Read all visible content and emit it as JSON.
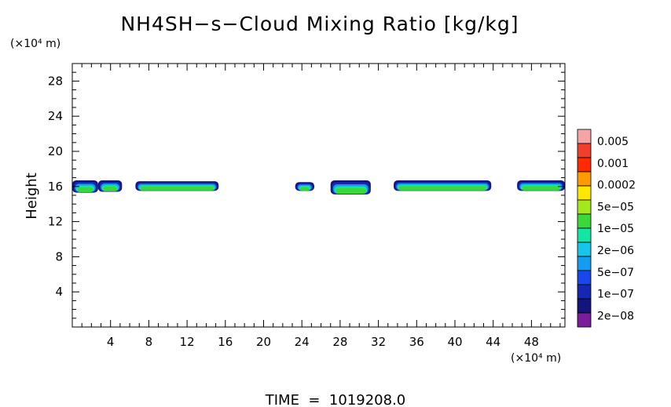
{
  "chart_data": {
    "type": "heatmap",
    "title": "NH4SH−s−Cloud Mixing Ratio [kg/kg]",
    "ylabel": "Height",
    "y_unit": "(×10⁴ m)",
    "x_unit": "(×10⁴ m)",
    "xlim": [
      0,
      51.5
    ],
    "ylim": [
      0,
      30
    ],
    "x_ticks": [
      "4",
      "8",
      "12",
      "16",
      "20",
      "24",
      "28",
      "32",
      "36",
      "40",
      "44",
      "48"
    ],
    "y_ticks": [
      "4",
      "8",
      "12",
      "16",
      "20",
      "24",
      "28"
    ],
    "footer": "TIME  =  1019208.0",
    "colorbar": {
      "labels": [
        "0.005",
        "0.001",
        "0.0002",
        "5e−05",
        "1e−05",
        "2e−06",
        "5e−07",
        "1e−07",
        "2e−08"
      ],
      "colors": [
        "#f4a4a4",
        "#f0402c",
        "#ff2a00",
        "#ff9b00",
        "#ffe800",
        "#a4e81c",
        "#3ad83a",
        "#12e6a2",
        "#18c4e8",
        "#159cf0",
        "#1848ec",
        "#1428b4",
        "#14147a",
        "#7a1c9c"
      ]
    },
    "cloud_layers": [
      {
        "x_start": 0.0,
        "x_end": 2.7,
        "y_bottom": 15.3,
        "y_top": 16.7
      },
      {
        "x_start": 2.7,
        "x_end": 5.2,
        "y_bottom": 15.4,
        "y_top": 16.7
      },
      {
        "x_start": 6.6,
        "x_end": 15.3,
        "y_bottom": 15.5,
        "y_top": 16.6
      },
      {
        "x_start": 23.3,
        "x_end": 25.3,
        "y_bottom": 15.5,
        "y_top": 16.5
      },
      {
        "x_start": 27.0,
        "x_end": 31.2,
        "y_bottom": 15.1,
        "y_top": 16.7
      },
      {
        "x_start": 33.6,
        "x_end": 43.8,
        "y_bottom": 15.5,
        "y_top": 16.7
      },
      {
        "x_start": 46.5,
        "x_end": 51.5,
        "y_bottom": 15.5,
        "y_top": 16.7
      }
    ]
  }
}
